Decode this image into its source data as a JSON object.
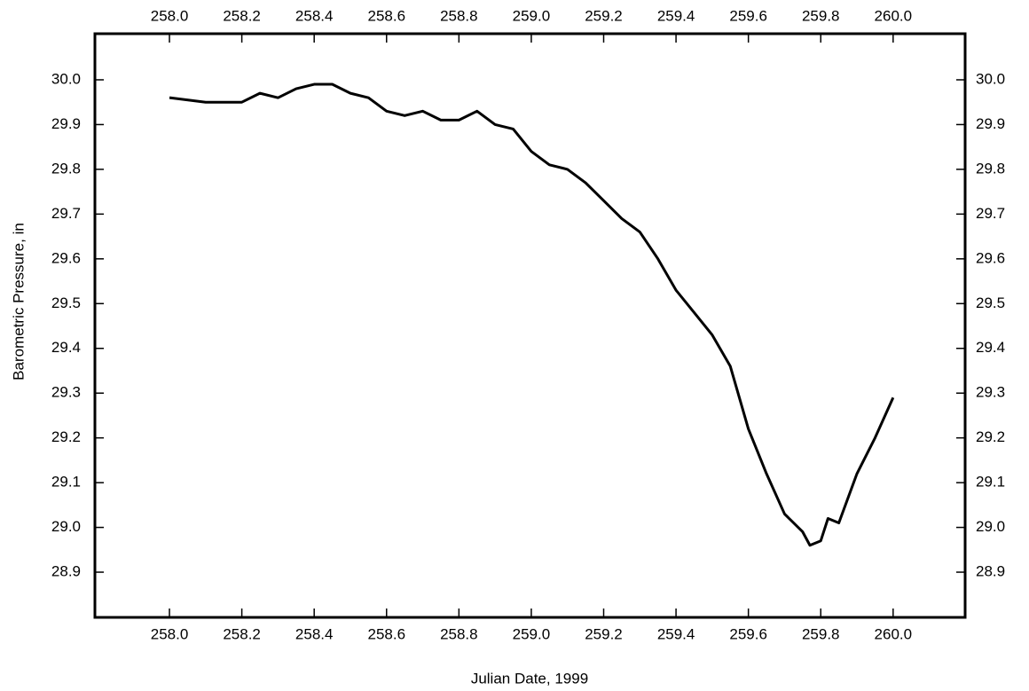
{
  "chart_data": {
    "type": "line",
    "x_label": "Julian Date, 1999",
    "y_label": "Barometric Pressure, in",
    "x": [
      258.0,
      258.1,
      258.2,
      258.25,
      258.3,
      258.35,
      258.4,
      258.45,
      258.5,
      258.55,
      258.6,
      258.65,
      258.7,
      258.75,
      258.8,
      258.85,
      258.9,
      258.95,
      259.0,
      259.05,
      259.1,
      259.15,
      259.2,
      259.25,
      259.3,
      259.35,
      259.4,
      259.45,
      259.5,
      259.55,
      259.6,
      259.65,
      259.7,
      259.75,
      259.77,
      259.8,
      259.82,
      259.85,
      259.9,
      259.95,
      260.0
    ],
    "series": [
      {
        "color": "#000000",
        "values": [
          29.96,
          29.95,
          29.95,
          29.97,
          29.96,
          29.98,
          29.99,
          29.99,
          29.97,
          29.96,
          29.93,
          29.92,
          29.93,
          29.91,
          29.91,
          29.93,
          29.9,
          29.89,
          29.84,
          29.81,
          29.8,
          29.77,
          29.73,
          29.69,
          29.66,
          29.6,
          29.53,
          29.48,
          29.43,
          29.36,
          29.22,
          29.12,
          29.03,
          28.99,
          28.96,
          28.97,
          29.02,
          29.01,
          29.12,
          29.2,
          29.29
        ]
      }
    ],
    "xlim": [
      257.794,
      260.199
    ],
    "ylim": [
      28.799,
      30.103
    ],
    "xticks": [
      {
        "value": 258.0,
        "label": "258.0"
      },
      {
        "value": 258.2,
        "label": "258.2"
      },
      {
        "value": 258.4,
        "label": "258.4"
      },
      {
        "value": 258.6,
        "label": "258.6"
      },
      {
        "value": 258.8,
        "label": "258.8"
      },
      {
        "value": 259.0,
        "label": "259.0"
      },
      {
        "value": 259.2,
        "label": "259.2"
      },
      {
        "value": 259.4,
        "label": "259.4"
      },
      {
        "value": 259.6,
        "label": "259.6"
      },
      {
        "value": 259.8,
        "label": "259.8"
      },
      {
        "value": 260.0,
        "label": "260.0"
      }
    ],
    "yticks": [
      28.9,
      {
        "value": 29.0,
        "label": "29.0"
      },
      29.1,
      29.2,
      29.3,
      29.4,
      29.5,
      29.6,
      29.7,
      29.8,
      29.9,
      {
        "value": 30.0,
        "label": "30.0"
      }
    ],
    "grid": false
  }
}
